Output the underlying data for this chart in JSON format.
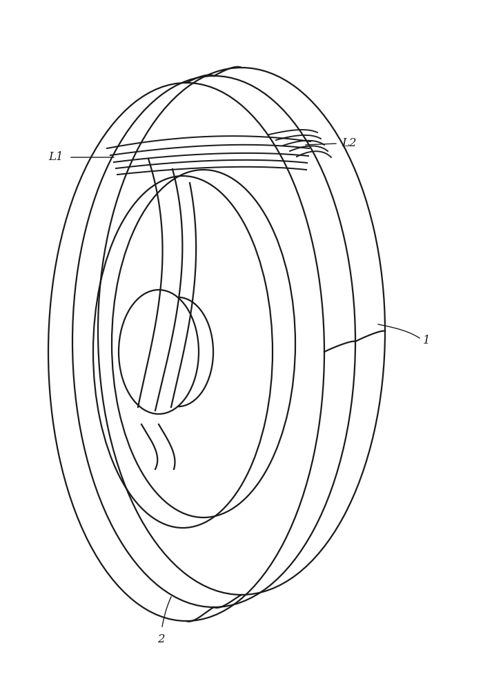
{
  "bg_color": "#ffffff",
  "line_color": "#1a1a1a",
  "line_width": 1.6,
  "fig_width": 7.0,
  "fig_height": 10.0,
  "label_fontsize": 12,
  "dpi": 100
}
